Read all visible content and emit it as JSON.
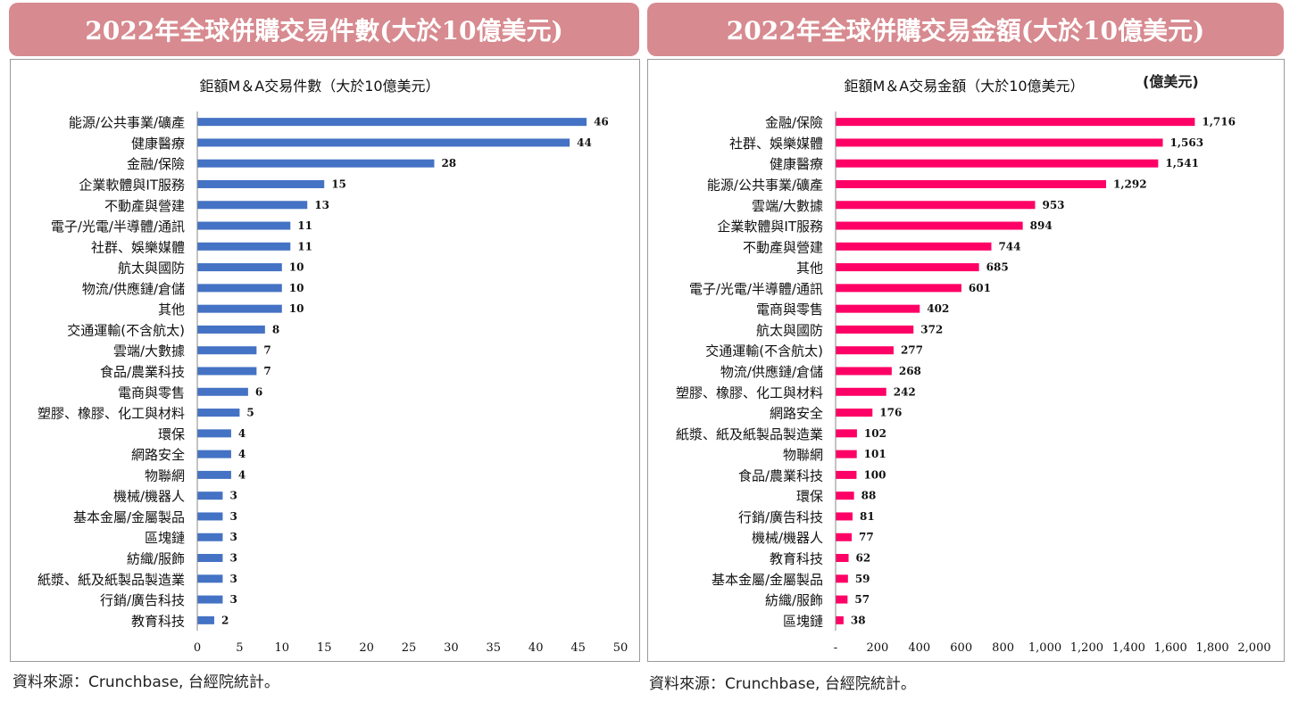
{
  "left": {
    "banner": "2022年全球併購交易件數(大於10億美元)",
    "source": "資料來源：Crunchbase, 台經院統計。",
    "chart_data": {
      "type": "bar",
      "orientation": "horizontal",
      "title": "鉅額M＆A交易件數（大於10億美元）",
      "categories": [
        "能源/公共事業/礦產",
        "健康醫療",
        "金融/保險",
        "企業軟體與IT服務",
        "不動產與營建",
        "電子/光電/半導體/通訊",
        "社群、娛樂媒體",
        "航太與國防",
        "物流/供應鏈/倉儲",
        "其他",
        "交通運輸(不含航太)",
        "雲端/大數據",
        "食品/農業科技",
        "電商與零售",
        "塑膠、橡膠、化工與材料",
        "環保",
        "網路安全",
        "物聯網",
        "機械/機器人",
        "基本金屬/金屬製品",
        "區塊鏈",
        "紡織/服飾",
        "紙漿、紙及紙製品製造業",
        "行銷/廣告科技",
        "教育科技"
      ],
      "values": [
        46,
        44,
        28,
        15,
        13,
        11,
        11,
        10,
        10,
        10,
        8,
        7,
        7,
        6,
        5,
        4,
        4,
        4,
        3,
        3,
        3,
        3,
        3,
        3,
        2
      ],
      "value_labels": [
        "46",
        "44",
        "28",
        "15",
        "13",
        "11",
        "11",
        "10",
        "10",
        "10",
        "8",
        "7",
        "7",
        "6",
        "5",
        "4",
        "4",
        "4",
        "3",
        "3",
        "3",
        "3",
        "3",
        "3",
        "2"
      ],
      "xlim": [
        0,
        50
      ],
      "xticks": [
        "0",
        "5",
        "10",
        "15",
        "20",
        "25",
        "30",
        "35",
        "40",
        "45",
        "50"
      ],
      "tick_values": [
        0,
        5,
        10,
        15,
        20,
        25,
        30,
        35,
        40,
        45,
        50
      ],
      "color": "#4472c4",
      "grid": false,
      "legend": "none"
    }
  },
  "right": {
    "banner": "2022年全球併購交易金額(大於10億美元)",
    "source": "資料來源：Crunchbase, 台經院統計。",
    "unit": "(億美元)",
    "chart_data": {
      "type": "bar",
      "orientation": "horizontal",
      "title": "鉅額M＆A交易金額（大於10億美元）",
      "categories": [
        "金融/保險",
        "社群、娛樂媒體",
        "健康醫療",
        "能源/公共事業/礦產",
        "雲端/大數據",
        "企業軟體與IT服務",
        "不動產與營建",
        "其他",
        "電子/光電/半導體/通訊",
        "電商與零售",
        "航太與國防",
        "交通運輸(不含航太)",
        "物流/供應鏈/倉儲",
        "塑膠、橡膠、化工與材料",
        "網路安全",
        "紙漿、紙及紙製品製造業",
        "物聯網",
        "食品/農業科技",
        "環保",
        "行銷/廣告科技",
        "機械/機器人",
        "教育科技",
        "基本金屬/金屬製品",
        "紡織/服飾",
        "區塊鏈"
      ],
      "values": [
        1716,
        1563,
        1541,
        1292,
        953,
        894,
        744,
        685,
        601,
        402,
        372,
        277,
        268,
        242,
        176,
        102,
        101,
        100,
        88,
        81,
        77,
        62,
        59,
        57,
        38
      ],
      "value_labels": [
        "1,716",
        "1,563",
        "1,541",
        "1,292",
        "953",
        "894",
        "744",
        "685",
        "601",
        "402",
        "372",
        "277",
        "268",
        "242",
        "176",
        "102",
        "101",
        "100",
        "88",
        "81",
        "77",
        "62",
        "59",
        "57",
        "38"
      ],
      "xlim": [
        0,
        2000
      ],
      "xticks": [
        "-",
        "200",
        "400",
        "600",
        "800",
        "1,000",
        "1,200",
        "1,400",
        "1,600",
        "1,800",
        "2,000"
      ],
      "tick_values": [
        0,
        200,
        400,
        600,
        800,
        1000,
        1200,
        1400,
        1600,
        1800,
        2000
      ],
      "color": "#ff0066",
      "grid": false,
      "legend": "none"
    }
  }
}
